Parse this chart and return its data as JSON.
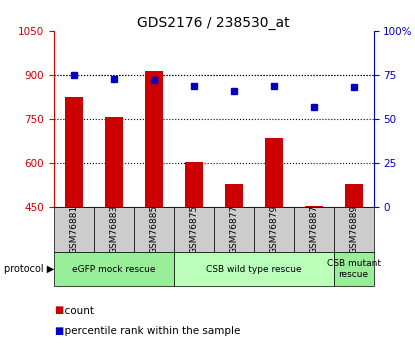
{
  "title": "GDS2176 / 238530_at",
  "samples": [
    "GSM76881",
    "GSM76883",
    "GSM76885",
    "GSM76875",
    "GSM76877",
    "GSM76879",
    "GSM76887",
    "GSM76889"
  ],
  "counts": [
    825,
    757,
    915,
    605,
    530,
    685,
    455,
    530
  ],
  "percentiles": [
    75,
    73,
    72,
    69,
    66,
    69,
    57,
    68
  ],
  "ylim_left": [
    450,
    1050
  ],
  "ylim_right": [
    0,
    100
  ],
  "yticks_left": [
    450,
    600,
    750,
    900,
    1050
  ],
  "yticks_right": [
    0,
    25,
    50,
    75,
    100
  ],
  "bar_color": "#cc0000",
  "dot_color": "#0000cc",
  "protocol_groups": [
    {
      "label": "eGFP mock rescue",
      "start": 0,
      "end": 3,
      "color": "#99ee99"
    },
    {
      "label": "CSB wild type rescue",
      "start": 3,
      "end": 7,
      "color": "#bbffbb"
    },
    {
      "label": "CSB mutant\nrescue",
      "start": 7,
      "end": 8,
      "color": "#99ee99"
    }
  ],
  "xlabel_area_bg": "#cccccc",
  "legend_items": [
    {
      "color": "#cc0000",
      "label": "count"
    },
    {
      "color": "#0000cc",
      "label": "percentile rank within the sample"
    }
  ],
  "protocol_label": "protocol",
  "title_fontsize": 10,
  "tick_fontsize": 7.5,
  "bar_width": 0.45
}
